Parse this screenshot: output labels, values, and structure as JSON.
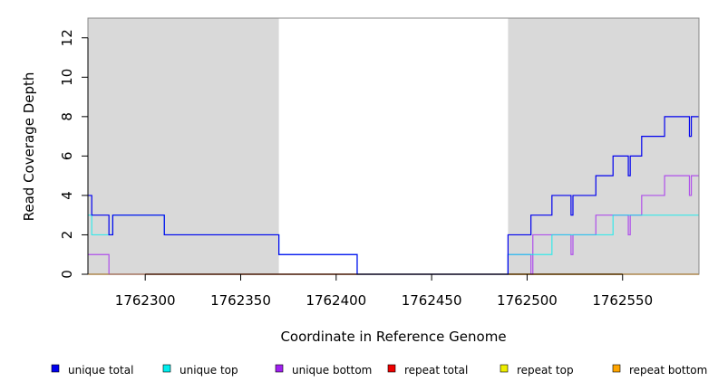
{
  "chart_data": {
    "type": "line",
    "step": true,
    "xlabel": "Coordinate in Reference Genome",
    "ylabel": "Read Coverage Depth",
    "xlim": [
      1762270,
      1762590
    ],
    "ylim": [
      0,
      13
    ],
    "x_ticks": [
      1762300,
      1762350,
      1762400,
      1762450,
      1762500,
      1762550
    ],
    "x_tick_labels": [
      "1762300",
      "1762350",
      "1762400",
      "1762450",
      "1762500",
      "1762550"
    ],
    "y_ticks": [
      0,
      2,
      4,
      6,
      8,
      10,
      12
    ],
    "y_tick_labels": [
      "0",
      "2",
      "4",
      "6",
      "8",
      "10",
      "12"
    ],
    "shaded_regions": [
      {
        "x_start": 1762270,
        "x_end": 1762370,
        "color": "#d9d9d9"
      },
      {
        "x_start": 1762490,
        "x_end": 1762590,
        "color": "#d9d9d9"
      }
    ],
    "legend": {
      "placement": "bottom",
      "entries": [
        {
          "label": "unique total",
          "color": "#0000ee"
        },
        {
          "label": "unique top",
          "color": "#00eeee"
        },
        {
          "label": "unique bottom",
          "color": "#a020f0"
        },
        {
          "label": "repeat total",
          "color": "#ee0000"
        },
        {
          "label": "repeat top",
          "color": "#eeee00"
        },
        {
          "label": "repeat bottom",
          "color": "#ffa500"
        }
      ]
    },
    "series": [
      {
        "name": "unique total",
        "color": "#0000ee",
        "points": [
          [
            1762270,
            4
          ],
          [
            1762272,
            3
          ],
          [
            1762281,
            2
          ],
          [
            1762283,
            3
          ],
          [
            1762310,
            2
          ],
          [
            1762370,
            1
          ],
          [
            1762411,
            0
          ],
          [
            1762490,
            2
          ],
          [
            1762502,
            3
          ],
          [
            1762513,
            4
          ],
          [
            1762523,
            3
          ],
          [
            1762524,
            4
          ],
          [
            1762536,
            5
          ],
          [
            1762545,
            6
          ],
          [
            1762553,
            5
          ],
          [
            1762554,
            6
          ],
          [
            1762560,
            7
          ],
          [
            1762572,
            8
          ],
          [
            1762585,
            7
          ],
          [
            1762586,
            8
          ],
          [
            1762590,
            8
          ]
        ]
      },
      {
        "name": "unique top",
        "color": "#00eeee",
        "points": [
          [
            1762270,
            3
          ],
          [
            1762272,
            2
          ],
          [
            1762281,
            2
          ],
          [
            1762283,
            3
          ],
          [
            1762310,
            2
          ],
          [
            1762370,
            1
          ],
          [
            1762411,
            0
          ],
          [
            1762490,
            1
          ],
          [
            1762502,
            1
          ],
          [
            1762513,
            2
          ],
          [
            1762536,
            2
          ],
          [
            1762545,
            3
          ],
          [
            1762590,
            3
          ]
        ]
      },
      {
        "name": "unique bottom",
        "color": "#a020f0",
        "points": [
          [
            1762270,
            1
          ],
          [
            1762281,
            0
          ],
          [
            1762490,
            1
          ],
          [
            1762502,
            0
          ],
          [
            1762503,
            2
          ],
          [
            1762523,
            1
          ],
          [
            1762524,
            2
          ],
          [
            1762536,
            3
          ],
          [
            1762553,
            2
          ],
          [
            1762554,
            3
          ],
          [
            1762560,
            4
          ],
          [
            1762572,
            5
          ],
          [
            1762585,
            4
          ],
          [
            1762586,
            5
          ],
          [
            1762590,
            5
          ]
        ]
      },
      {
        "name": "repeat total",
        "color": "#ee0000",
        "points": [
          [
            1762270,
            0
          ],
          [
            1762590,
            0
          ]
        ]
      },
      {
        "name": "repeat top",
        "color": "#eeee00",
        "points": [
          [
            1762270,
            0
          ],
          [
            1762590,
            0
          ]
        ]
      },
      {
        "name": "repeat bottom",
        "color": "#ffa500",
        "points": [
          [
            1762270,
            0
          ],
          [
            1762590,
            0
          ]
        ]
      }
    ]
  }
}
